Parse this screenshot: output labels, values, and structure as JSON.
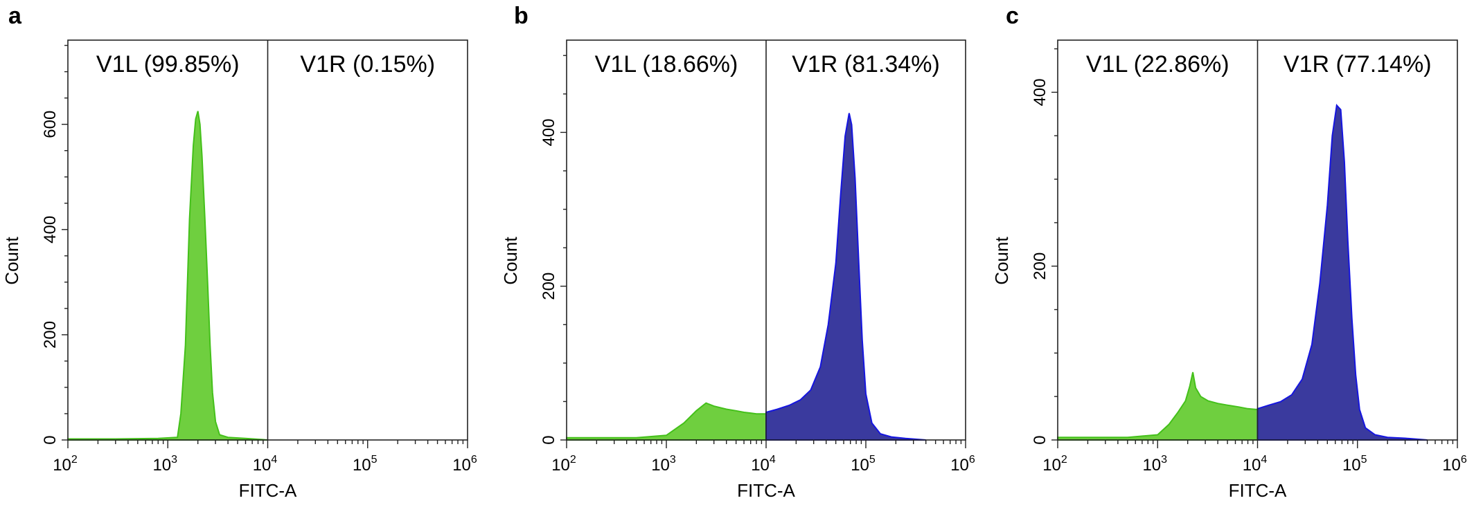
{
  "colors": {
    "green": "#6fcf3f",
    "green_edge": "#44c01a",
    "blue": "#3a3a9e",
    "blue_edge": "#1515e0"
  },
  "chart_data": [
    {
      "type": "area",
      "panel": "a",
      "xlabel": "FITC-A",
      "ylabel": "Count",
      "x_scale": "log",
      "xlim": [
        100,
        1000000
      ],
      "x_ticks": [
        {
          "base": "10",
          "exp": "2"
        },
        {
          "base": "10",
          "exp": "3"
        },
        {
          "base": "10",
          "exp": "4"
        },
        {
          "base": "10",
          "exp": "5"
        },
        {
          "base": "10",
          "exp": "6"
        }
      ],
      "ylim": [
        0,
        760
      ],
      "y_ticks": [
        "0",
        "200",
        "400",
        "600"
      ],
      "y_tick_values": [
        0,
        200,
        400,
        600
      ],
      "gate_x": 10000,
      "gates": [
        {
          "label": "V1L (99.85%)"
        },
        {
          "label": "V1R (0.15%)"
        }
      ],
      "series": [
        {
          "color": "green",
          "x": [
            100,
            300,
            800,
            1250,
            1350,
            1500,
            1650,
            1800,
            1900,
            2000,
            2100,
            2200,
            2350,
            2500,
            2650,
            2800,
            3000,
            3300,
            4000,
            6000,
            10000
          ],
          "y": [
            2,
            2,
            3,
            5,
            50,
            180,
            420,
            560,
            610,
            625,
            600,
            540,
            420,
            300,
            180,
            90,
            35,
            10,
            5,
            3,
            0
          ]
        }
      ]
    },
    {
      "type": "area",
      "panel": "b",
      "xlabel": "FITC-A",
      "ylabel": "Count",
      "x_scale": "log",
      "xlim": [
        100,
        1000000
      ],
      "x_ticks": [
        {
          "base": "10",
          "exp": "2"
        },
        {
          "base": "10",
          "exp": "3"
        },
        {
          "base": "10",
          "exp": "4"
        },
        {
          "base": "10",
          "exp": "5"
        },
        {
          "base": "10",
          "exp": "6"
        }
      ],
      "ylim": [
        0,
        520
      ],
      "y_ticks": [
        "0",
        "200",
        "400"
      ],
      "y_tick_values": [
        0,
        200,
        400
      ],
      "gate_x": 10000,
      "gates": [
        {
          "label": "V1L (18.66%)"
        },
        {
          "label": "V1R (81.34%)"
        }
      ],
      "series": [
        {
          "color": "green",
          "x": [
            100,
            500,
            1000,
            1500,
            2000,
            2500,
            3000,
            4000,
            5000,
            6000,
            7000,
            8000,
            10000
          ],
          "y": [
            3,
            3,
            6,
            22,
            38,
            48,
            44,
            40,
            38,
            36,
            35,
            34,
            34
          ]
        },
        {
          "color": "blue",
          "x": [
            10000,
            13000,
            17000,
            22000,
            28000,
            35000,
            42000,
            50000,
            56000,
            62000,
            68000,
            72000,
            78000,
            85000,
            92000,
            100000,
            115000,
            140000,
            180000,
            250000,
            400000
          ],
          "y": [
            36,
            40,
            45,
            52,
            65,
            95,
            150,
            230,
            320,
            395,
            425,
            410,
            340,
            230,
            130,
            60,
            22,
            8,
            4,
            2,
            0
          ]
        }
      ]
    },
    {
      "type": "area",
      "panel": "c",
      "xlabel": "FITC-A",
      "ylabel": "Count",
      "x_scale": "log",
      "xlim": [
        100,
        1000000
      ],
      "x_ticks": [
        {
          "base": "10",
          "exp": "2"
        },
        {
          "base": "10",
          "exp": "3"
        },
        {
          "base": "10",
          "exp": "4"
        },
        {
          "base": "10",
          "exp": "5"
        },
        {
          "base": "10",
          "exp": "6"
        }
      ],
      "ylim": [
        0,
        460
      ],
      "y_ticks": [
        "0",
        "200",
        "400"
      ],
      "y_tick_values": [
        0,
        200,
        400
      ],
      "gate_x": 10000,
      "gates": [
        {
          "label": "V1L (22.86%)"
        },
        {
          "label": "V1R (77.14%)"
        }
      ],
      "series": [
        {
          "color": "green",
          "x": [
            100,
            500,
            1000,
            1300,
            1600,
            1900,
            2100,
            2250,
            2400,
            2700,
            3200,
            4000,
            5000,
            6500,
            8000,
            10000
          ],
          "y": [
            3,
            3,
            6,
            18,
            32,
            45,
            62,
            78,
            60,
            50,
            45,
            42,
            40,
            38,
            36,
            35
          ]
        },
        {
          "color": "blue",
          "x": [
            10000,
            13000,
            17000,
            22000,
            28000,
            35000,
            42000,
            50000,
            56000,
            62000,
            68000,
            74000,
            80000,
            88000,
            96000,
            105000,
            120000,
            150000,
            200000,
            300000,
            500000
          ],
          "y": [
            36,
            40,
            44,
            52,
            70,
            110,
            180,
            270,
            350,
            385,
            380,
            320,
            230,
            140,
            75,
            35,
            14,
            6,
            3,
            2,
            0
          ]
        }
      ]
    }
  ]
}
